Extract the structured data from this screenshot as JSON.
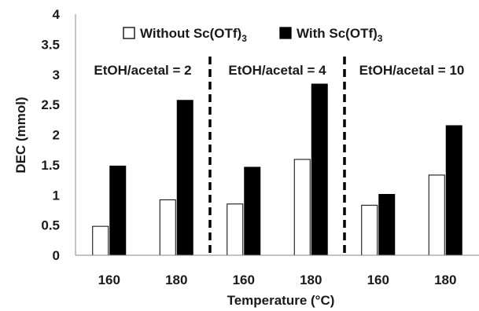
{
  "chart_data": {
    "type": "bar",
    "xlabel": "Temperature (°C)",
    "ylabel": "DEC (mmol)",
    "ylim": [
      0,
      4
    ],
    "yticks": [
      "0",
      "0.5",
      "1",
      "1.5",
      "2",
      "2.5",
      "3",
      "3.5",
      "4"
    ],
    "categories": [
      "160",
      "180",
      "160",
      "180",
      "160",
      "180"
    ],
    "groups": [
      {
        "label": "EtOH/acetal = 2",
        "categories": [
          0,
          1
        ]
      },
      {
        "label": "EtOH/acetal = 4",
        "categories": [
          2,
          3
        ]
      },
      {
        "label": "EtOH/acetal = 10",
        "categories": [
          4,
          5
        ]
      }
    ],
    "series": [
      {
        "name": "Without Sc(OTf)",
        "name_subscript": "3",
        "values": [
          0.48,
          0.92,
          0.85,
          1.59,
          0.83,
          1.33
        ],
        "fill": "#ffffff",
        "stroke": "#000000"
      },
      {
        "name": "With Sc(OTf)",
        "name_subscript": "3",
        "values": [
          1.48,
          2.57,
          1.46,
          2.84,
          1.01,
          2.15
        ],
        "fill": "#000000",
        "stroke": "#000000"
      }
    ],
    "legend_position": "top",
    "grid": false
  }
}
